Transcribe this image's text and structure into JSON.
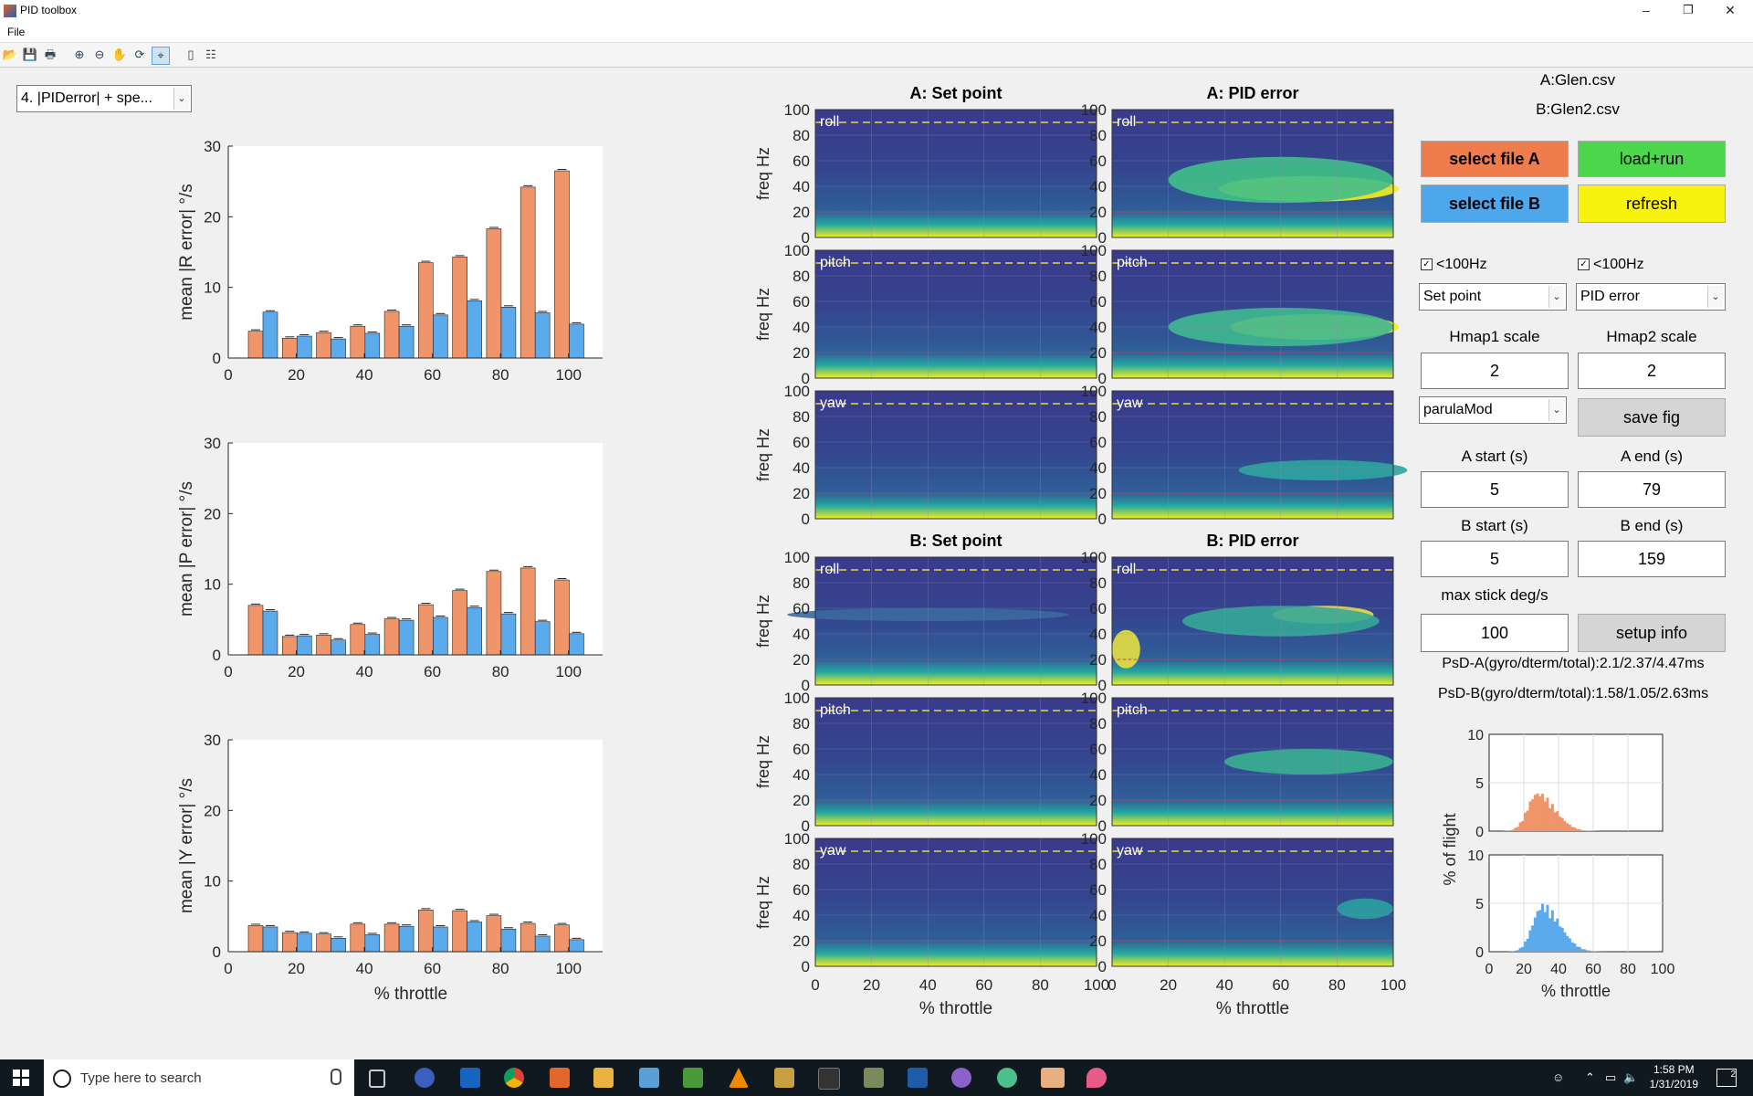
{
  "window": {
    "title": "PID toolbox",
    "menu": [
      "File"
    ],
    "min_label": "–",
    "max_label": "❐",
    "close_label": "✕"
  },
  "toolbar_icons": [
    "open-folder-icon",
    "save-icon",
    "print-icon",
    "zoom-in-icon",
    "zoom-out-icon",
    "pan-hand-icon",
    "rotate-icon",
    "data-cursor-icon",
    "colorbar-icon",
    "legend-icon"
  ],
  "plot_selector": {
    "value": "4. |PIDerror| + spe..."
  },
  "bar_charts": {
    "chart_data": [
      {
        "type": "bar",
        "ylabel": "mean |R error|  °/s",
        "xlabel": "",
        "ylim": [
          0,
          30
        ],
        "yticks": [
          "0",
          "10",
          "20",
          "30"
        ],
        "xticks": [
          "0",
          "20",
          "40",
          "60",
          "80",
          "100"
        ],
        "categories": [
          10,
          20,
          30,
          40,
          50,
          60,
          70,
          80,
          90,
          100
        ],
        "series": [
          {
            "name": "A",
            "color": "#f0956a",
            "values": [
              3.8,
              2.8,
              3.6,
              4.5,
              6.6,
              13.5,
              14.3,
              18.3,
              24.2,
              26.5
            ]
          },
          {
            "name": "B",
            "color": "#5aaaec",
            "values": [
              6.5,
              3.1,
              2.7,
              3.5,
              4.5,
              6.1,
              8.1,
              7.2,
              6.4,
              4.8
            ]
          }
        ]
      },
      {
        "type": "bar",
        "ylabel": "mean |P error|  °/s",
        "xlabel": "",
        "ylim": [
          0,
          30
        ],
        "yticks": [
          "0",
          "10",
          "20",
          "30"
        ],
        "xticks": [
          "0",
          "20",
          "40",
          "60",
          "80",
          "100"
        ],
        "categories": [
          10,
          20,
          30,
          40,
          50,
          60,
          70,
          80,
          90,
          100
        ],
        "series": [
          {
            "name": "A",
            "color": "#f0956a",
            "values": [
              7.0,
              2.6,
              2.8,
              4.3,
              5.1,
              7.1,
              9.1,
              11.8,
              12.3,
              10.6
            ]
          },
          {
            "name": "B",
            "color": "#5aaaec",
            "values": [
              6.2,
              2.7,
              2.1,
              2.9,
              4.9,
              5.3,
              6.7,
              5.8,
              4.7,
              3.0
            ]
          }
        ]
      },
      {
        "type": "bar",
        "ylabel": "mean |Y error|  °/s",
        "xlabel": "% throttle",
        "ylim": [
          0,
          30
        ],
        "yticks": [
          "0",
          "10",
          "20",
          "30"
        ],
        "xticks": [
          "0",
          "20",
          "40",
          "60",
          "80",
          "100"
        ],
        "categories": [
          10,
          20,
          30,
          40,
          50,
          60,
          70,
          80,
          90,
          100
        ],
        "series": [
          {
            "name": "A",
            "color": "#f0956a",
            "values": [
              3.7,
              2.7,
              2.5,
              3.9,
              3.9,
              5.9,
              5.8,
              5.1,
              4.0,
              3.8
            ]
          },
          {
            "name": "B",
            "color": "#5aaaec",
            "values": [
              3.5,
              2.6,
              1.9,
              2.4,
              3.6,
              3.5,
              4.2,
              3.2,
              2.2,
              1.7
            ]
          }
        ]
      }
    ]
  },
  "heatmaps": {
    "titles": {
      "a_set": "A: Set point",
      "a_err": "A: PID error",
      "b_set": "B: Set point",
      "b_err": "B: PID error"
    },
    "ylabel": "freq Hz",
    "xlabel": "% throttle",
    "yticks": [
      "0",
      "20",
      "40",
      "60",
      "80",
      "100"
    ],
    "xticks": [
      "0",
      "20",
      "40",
      "60",
      "80",
      "100"
    ],
    "axis_labels": [
      "roll",
      "pitch",
      "yaw"
    ]
  },
  "panel": {
    "file_a": "A:Glen.csv",
    "file_b": "B:Glen2.csv",
    "select_a": "select file A",
    "select_b": "select file B",
    "load_run": "load+run",
    "refresh": "refresh",
    "chk1_label": "<100Hz",
    "chk2_label": "<100Hz",
    "dd1": "Set point",
    "dd2": "PID error",
    "hmap1_label": "Hmap1 scale",
    "hmap2_label": "Hmap2 scale",
    "hmap1_value": "2",
    "hmap2_value": "2",
    "colormap": "parulaMod",
    "save_fig": "save fig",
    "a_start_label": "A start (s)",
    "a_end_label": "A end (s)",
    "a_start": "5",
    "a_end": "79",
    "b_start_label": "B start (s)",
    "b_end_label": "B end (s)",
    "b_start": "5",
    "b_end": "159",
    "max_stick_label": "max stick deg/s",
    "max_stick": "100",
    "setup_info": "setup info",
    "psd_a": "PsD-A(gyro/dterm/total):2.1/2.37/4.47ms",
    "psd_b": "PsD-B(gyro/dterm/total):1.58/1.05/2.63ms",
    "colors": {
      "select_a": "#ef7c4c",
      "select_b": "#4ea6eb",
      "load_run": "#4bd64b",
      "refresh": "#f7f20e",
      "grey": "#d5d5d5"
    }
  },
  "histograms": {
    "ylabel": "% of flight",
    "xlabel": "% throttle",
    "yticks": [
      "0",
      "5",
      "10"
    ],
    "xticks": [
      "0",
      "20",
      "40",
      "60",
      "80",
      "100"
    ]
  },
  "taskbar": {
    "search_placeholder": "Type here to search",
    "time": "1:58 PM",
    "date": "1/31/2019",
    "notification_count": "2"
  }
}
